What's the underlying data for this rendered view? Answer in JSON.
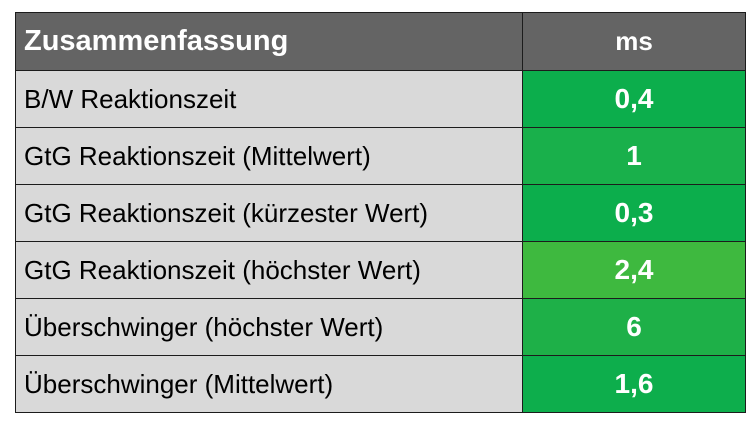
{
  "header": {
    "title": "Zusammenfassung",
    "unit": "ms",
    "background_color": "#646464"
  },
  "rows": [
    {
      "label": "B/W Reaktionszeit",
      "value": "0,4",
      "color": "#0cae4c"
    },
    {
      "label": "GtG Reaktionszeit (Mittelwert)",
      "value": "1",
      "color": "#19b04b"
    },
    {
      "label": "GtG Reaktionszeit (kürzester Wert)",
      "value": "0,3",
      "color": "#0cae4c"
    },
    {
      "label": "GtG Reaktionszeit (höchster Wert)",
      "value": "2,4",
      "color": "#3eb93f"
    },
    {
      "label": "Überschwinger (höchster Wert)",
      "value": "6",
      "color": "#1eb048"
    },
    {
      "label": "Überschwinger (Mittelwert)",
      "value": "1,6",
      "color": "#0dae4c"
    }
  ],
  "label_cell_color": "#d9d9d9"
}
